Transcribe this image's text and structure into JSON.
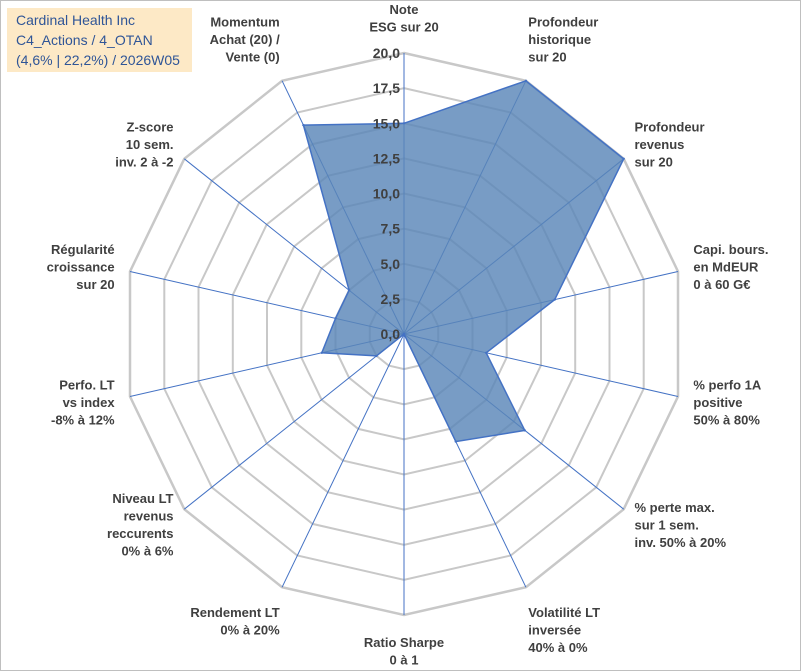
{
  "title_box": {
    "line1": "Cardinal Health Inc",
    "line2": "C4_Actions / 4_OTAN",
    "line3": "(4,6% | 22,2%) / 2026W05"
  },
  "chart_data": {
    "type": "radar",
    "r_range": [
      0,
      20
    ],
    "r_ticks": [
      "0,0",
      "2,5",
      "5,0",
      "7,5",
      "10,0",
      "12,5",
      "15,0",
      "17,5",
      "20,0"
    ],
    "axes": [
      [
        "Note",
        "ESG sur 20"
      ],
      [
        "Profondeur",
        "historique",
        "sur 20"
      ],
      [
        "Profondeur",
        "revenus",
        "sur 20"
      ],
      [
        "Capi. bours.",
        "en MdEUR",
        "0 à 60 G€"
      ],
      [
        "% perfo 1A",
        "positive",
        "50% à 80%"
      ],
      [
        "% perte max.",
        "sur 1 sem.",
        "inv. 50% à 20%"
      ],
      [
        "Volatilité LT",
        "inversée",
        "40% à 0%"
      ],
      [
        "Ratio Sharpe",
        "0 à 1"
      ],
      [
        "Rendement LT",
        "0% à 20%"
      ],
      [
        "Niveau LT",
        "revenus",
        "reccurents",
        "0% à 6%"
      ],
      [
        "Perfo. LT",
        "vs index",
        "-8% à 12%"
      ],
      [
        "Régularité",
        "croissance",
        "sur 20"
      ],
      [
        "Z-score",
        "10 sem.",
        "inv. 2 à -2"
      ],
      [
        "Momentum",
        "Achat (20) /",
        "Vente (0)"
      ]
    ],
    "series": [
      {
        "name": "Cardinal Health Inc",
        "values": [
          15.0,
          20.0,
          20.0,
          11.0,
          6.0,
          11.0,
          8.5,
          0.0,
          0.0,
          2.5,
          6.0,
          5.0,
          5.0,
          16.5
        ]
      }
    ],
    "colors": {
      "fill": "#5a86b8",
      "stroke": "#4472c4",
      "grid": "#c8c8c8",
      "spoke": "#4472c4"
    }
  }
}
